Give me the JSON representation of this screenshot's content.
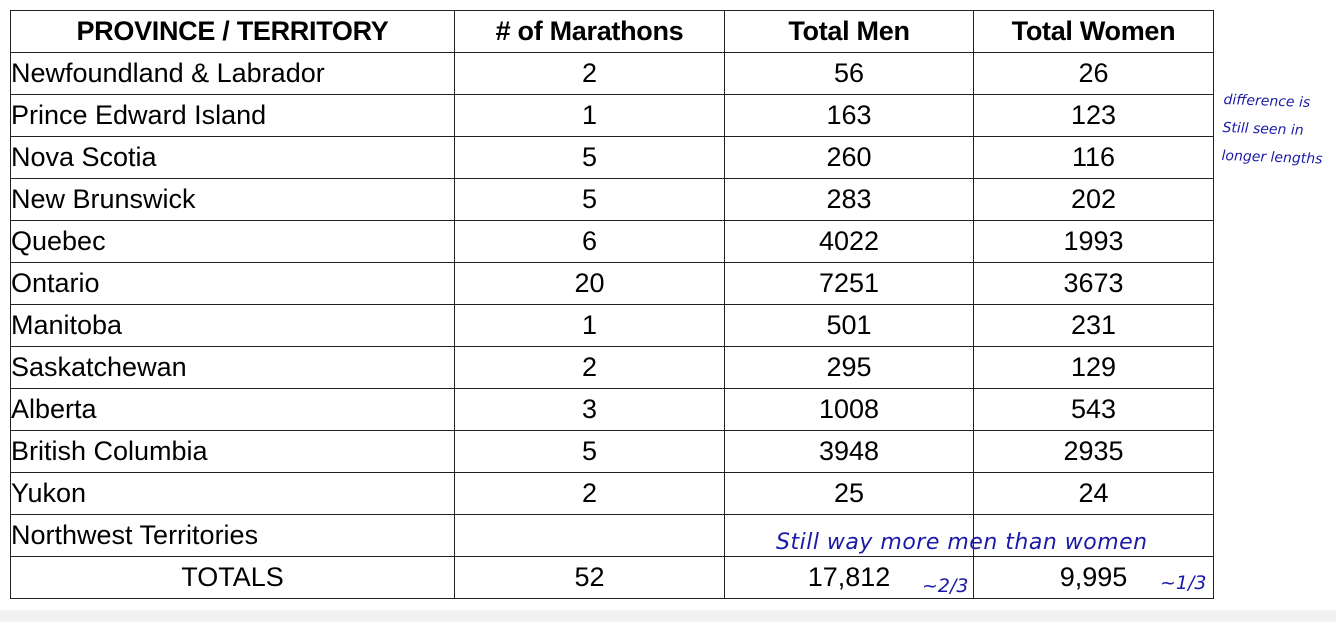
{
  "table": {
    "headers": {
      "province": "PROVINCE / TERRITORY",
      "marathons": "# of Marathons",
      "men": "Total Men",
      "women": "Total Women"
    },
    "rows": [
      {
        "province": "Newfoundland & Labrador",
        "marathons": "2",
        "men": "56",
        "women": "26"
      },
      {
        "province": "Prince Edward Island",
        "marathons": "1",
        "men": "163",
        "women": "123"
      },
      {
        "province": "Nova Scotia",
        "marathons": "5",
        "men": "260",
        "women": "116"
      },
      {
        "province": "New Brunswick",
        "marathons": "5",
        "men": "283",
        "women": "202"
      },
      {
        "province": "Quebec",
        "marathons": "6",
        "men": "4022",
        "women": "1993"
      },
      {
        "province": "Ontario",
        "marathons": "20",
        "men": "7251",
        "women": "3673"
      },
      {
        "province": "Manitoba",
        "marathons": "1",
        "men": "501",
        "women": "231"
      },
      {
        "province": "Saskatchewan",
        "marathons": "2",
        "men": "295",
        "women": "129"
      },
      {
        "province": "Alberta",
        "marathons": "3",
        "men": "1008",
        "women": "543"
      },
      {
        "province": "British Columbia",
        "marathons": "5",
        "men": "3948",
        "women": "2935"
      },
      {
        "province": "Yukon",
        "marathons": "2",
        "men": "25",
        "women": "24"
      },
      {
        "province": "Northwest Territories",
        "marathons": "",
        "men": "",
        "women": ""
      }
    ],
    "totals": {
      "label": "TOTALS",
      "marathons": "52",
      "men": "17,812",
      "women": "9,995"
    }
  },
  "annotations": {
    "side_note": [
      "difference is",
      "Still seen in",
      "longer lengths"
    ],
    "row_note": "Still way more men than women",
    "men_fraction": "~2/3",
    "women_fraction": "~1/3",
    "ink_color": "#1a1aa8"
  }
}
